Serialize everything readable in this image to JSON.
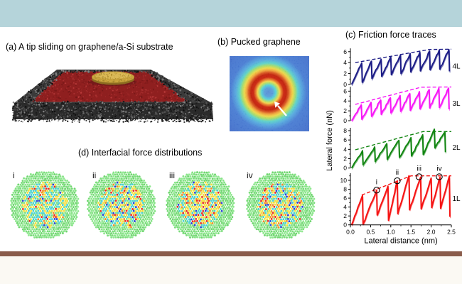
{
  "page": {
    "header_band_color": "#b5d4da",
    "divider_bar_color": "#8a5c4b",
    "footer_band_color": "#fbf9f3",
    "background_color": "#ffffff"
  },
  "panel_a": {
    "title": "(a) A tip sliding on graphene/a-Si substrate",
    "substrate_color": "#2e2e2e",
    "film_color": "#8f1f1f",
    "tip_color": "#c7a23c"
  },
  "panel_b": {
    "title": "(b) Pucked graphene",
    "arrow_color": "#ffffff",
    "ring_color": "#b01208",
    "background_color": "#2f62c6"
  },
  "panel_c": {
    "title": "(c) Friction force traces"
  },
  "chart_data": {
    "type": "line",
    "title": "(c) Friction force traces",
    "xlabel": "Lateral distance (nm)",
    "ylabel": "Lateral force (nN)",
    "xlim": [
      0,
      2.5
    ],
    "x_ticks": [
      0.0,
      0.5,
      1.0,
      1.5,
      2.0,
      2.5
    ],
    "x_minor_step": 0.25,
    "legend_position": "right-of-each-trace",
    "grid": false,
    "subplots": [
      {
        "name": "4L",
        "color": "#1d1d86",
        "ylim": [
          0,
          6.6
        ],
        "y_ticks": [
          0,
          2,
          4,
          6
        ],
        "peaks_x": [
          0.28,
          0.52,
          0.76,
          1.0,
          1.24,
          1.48,
          1.72,
          1.96,
          2.2,
          2.44
        ],
        "peaks_y": [
          3.9,
          4.25,
          4.6,
          5.0,
          5.35,
          5.65,
          5.9,
          6.1,
          6.3,
          6.35
        ],
        "minima": [
          0.4,
          1.1,
          1.5,
          1.8,
          2.0,
          2.3,
          2.5,
          2.7,
          2.8,
          2.4
        ],
        "envelope": [
          [
            0.12,
            4.0
          ],
          [
            1.95,
            6.4
          ],
          [
            2.5,
            6.45
          ]
        ]
      },
      {
        "name": "3L",
        "color": "#f718f7",
        "ylim": [
          0,
          6.9
        ],
        "y_ticks": [
          0,
          2,
          4,
          6
        ],
        "peaks_x": [
          0.27,
          0.51,
          0.75,
          0.99,
          1.23,
          1.47,
          1.71,
          1.95,
          2.19,
          2.43
        ],
        "peaks_y": [
          3.2,
          3.7,
          4.2,
          4.65,
          5.1,
          5.5,
          5.9,
          6.3,
          6.6,
          6.6
        ],
        "minima": [
          0.3,
          0.9,
          1.3,
          1.6,
          1.9,
          2.1,
          2.4,
          2.6,
          2.7,
          2.3
        ],
        "envelope": [
          [
            0.12,
            3.3
          ],
          [
            1.75,
            6.8
          ],
          [
            2.5,
            6.85
          ]
        ]
      },
      {
        "name": "2L",
        "color": "#108510",
        "ylim": [
          0,
          8.6
        ],
        "y_ticks": [
          0,
          2,
          4,
          6,
          8
        ],
        "peaks_x": [
          0.3,
          0.6,
          0.9,
          1.2,
          1.5,
          1.79,
          2.08,
          2.34
        ],
        "peaks_y": [
          3.7,
          4.5,
          5.2,
          5.9,
          6.5,
          7.1,
          8.3,
          7.7
        ],
        "minima": [
          0.7,
          1.4,
          1.9,
          2.3,
          2.6,
          2.9,
          4.3,
          3.4
        ],
        "envelope": [
          [
            0.12,
            3.9
          ],
          [
            1.8,
            7.8
          ],
          [
            2.5,
            7.8
          ]
        ]
      },
      {
        "name": "1L",
        "color": "#f51414",
        "ylim": [
          0,
          11.6
        ],
        "y_ticks": [
          0,
          2,
          4,
          6,
          8,
          10
        ],
        "peaks_x": [
          0.3,
          0.65,
          0.93,
          1.16,
          1.45,
          1.74,
          2.0,
          2.22,
          2.45
        ],
        "peaks_y": [
          6.6,
          7.8,
          8.7,
          9.9,
          11.0,
          10.7,
          10.5,
          10.7,
          10.9
        ],
        "minima": [
          0.2,
          2.2,
          1.0,
          2.5,
          3.4,
          3.6,
          3.9,
          3.7,
          1.8
        ],
        "envelope": [
          [
            0.28,
            6.7
          ],
          [
            1.5,
            11.0
          ],
          [
            2.5,
            11.0
          ]
        ],
        "markers": [
          {
            "label": "i",
            "x": 0.65,
            "y": 7.8
          },
          {
            "label": "ii",
            "x": 1.16,
            "y": 9.9
          },
          {
            "label": "iii",
            "x": 1.7,
            "y": 10.8
          },
          {
            "label": "iv",
            "x": 2.2,
            "y": 10.8
          }
        ]
      }
    ]
  },
  "panel_d": {
    "title": "(d) Interfacial force distributions",
    "palette": {
      "green": "#7de07d",
      "cyan": "#4ad2cc",
      "yellow": "#f2df3d",
      "orange": "#f09028",
      "red": "#e63226",
      "blue": "#2f49cf"
    },
    "items": [
      {
        "label": "i",
        "mix": {
          "green": 0.18,
          "cyan": 0.34,
          "yellow": 0.32,
          "orange": 0.07,
          "red": 0.04,
          "blue": 0.05
        }
      },
      {
        "label": "ii",
        "mix": {
          "green": 0.16,
          "cyan": 0.33,
          "yellow": 0.32,
          "orange": 0.08,
          "red": 0.05,
          "blue": 0.06
        }
      },
      {
        "label": "iii",
        "mix": {
          "green": 0.1,
          "cyan": 0.27,
          "yellow": 0.36,
          "orange": 0.12,
          "red": 0.08,
          "blue": 0.07
        }
      },
      {
        "label": "iv",
        "mix": {
          "green": 0.12,
          "cyan": 0.28,
          "yellow": 0.34,
          "orange": 0.11,
          "red": 0.08,
          "blue": 0.07
        }
      }
    ]
  }
}
